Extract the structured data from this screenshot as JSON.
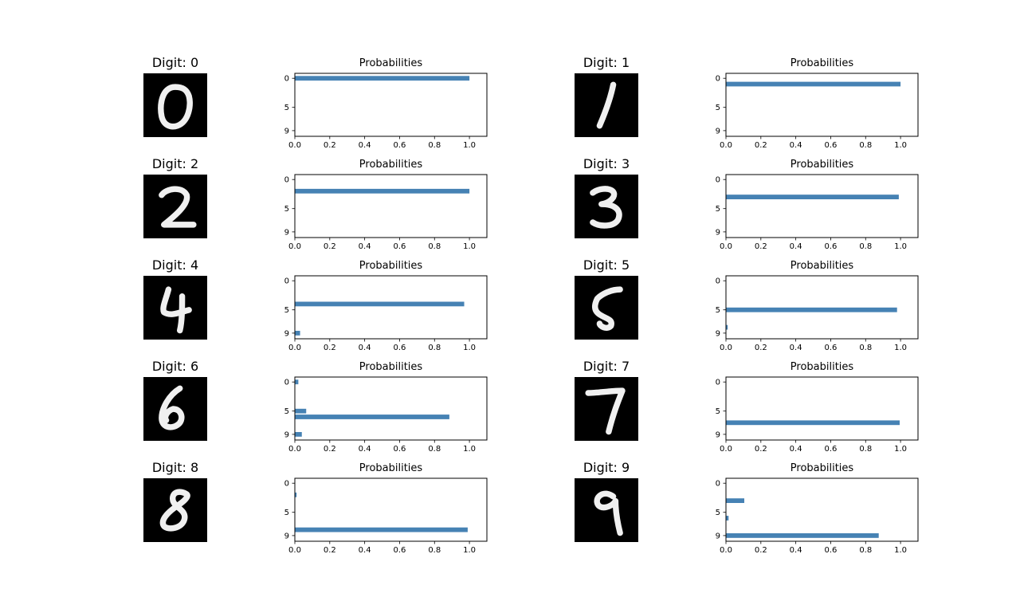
{
  "figure": {
    "panel_count": 10
  },
  "colors": {
    "bar": "#4682b4",
    "digit_bg": "#000000",
    "digit_stroke": "#f0f0f0",
    "axis": "#000000"
  },
  "chart_data": [
    {
      "type": "bar",
      "orientation": "horizontal",
      "image_title": "Digit: 0",
      "title": "Probabilities",
      "categories": [
        "0",
        "1",
        "2",
        "3",
        "4",
        "5",
        "6",
        "7",
        "8",
        "9"
      ],
      "values": [
        1.0,
        0,
        0,
        0,
        0,
        0,
        0,
        0,
        0,
        0
      ],
      "xlim": [
        0,
        1.1
      ],
      "xticks": [
        "0.0",
        "0.2",
        "0.4",
        "0.6",
        "0.8",
        "1.0"
      ],
      "yticks": [
        "0",
        "5",
        "9"
      ]
    },
    {
      "type": "bar",
      "orientation": "horizontal",
      "image_title": "Digit: 1",
      "title": "Probabilities",
      "categories": [
        "0",
        "1",
        "2",
        "3",
        "4",
        "5",
        "6",
        "7",
        "8",
        "9"
      ],
      "values": [
        0,
        1.0,
        0,
        0,
        0,
        0,
        0,
        0,
        0,
        0
      ],
      "xlim": [
        0,
        1.1
      ],
      "xticks": [
        "0.0",
        "0.2",
        "0.4",
        "0.6",
        "0.8",
        "1.0"
      ],
      "yticks": [
        "0",
        "5",
        "9"
      ]
    },
    {
      "type": "bar",
      "orientation": "horizontal",
      "image_title": "Digit: 2",
      "title": "Probabilities",
      "categories": [
        "0",
        "1",
        "2",
        "3",
        "4",
        "5",
        "6",
        "7",
        "8",
        "9"
      ],
      "values": [
        0,
        0,
        1.0,
        0,
        0,
        0,
        0,
        0,
        0,
        0
      ],
      "xlim": [
        0,
        1.1
      ],
      "xticks": [
        "0.0",
        "0.2",
        "0.4",
        "0.6",
        "0.8",
        "1.0"
      ],
      "yticks": [
        "0",
        "5",
        "9"
      ]
    },
    {
      "type": "bar",
      "orientation": "horizontal",
      "image_title": "Digit: 3",
      "title": "Probabilities",
      "categories": [
        "0",
        "1",
        "2",
        "3",
        "4",
        "5",
        "6",
        "7",
        "8",
        "9"
      ],
      "values": [
        0,
        0,
        0,
        0.99,
        0,
        0,
        0,
        0,
        0,
        0
      ],
      "xlim": [
        0,
        1.1
      ],
      "xticks": [
        "0.0",
        "0.2",
        "0.4",
        "0.6",
        "0.8",
        "1.0"
      ],
      "yticks": [
        "0",
        "5",
        "9"
      ]
    },
    {
      "type": "bar",
      "orientation": "horizontal",
      "image_title": "Digit: 4",
      "title": "Probabilities",
      "categories": [
        "0",
        "1",
        "2",
        "3",
        "4",
        "5",
        "6",
        "7",
        "8",
        "9"
      ],
      "values": [
        0,
        0,
        0,
        0,
        0.97,
        0,
        0,
        0,
        0,
        0.03
      ],
      "xlim": [
        0,
        1.1
      ],
      "xticks": [
        "0.0",
        "0.2",
        "0.4",
        "0.6",
        "0.8",
        "1.0"
      ],
      "yticks": [
        "0",
        "5",
        "9"
      ]
    },
    {
      "type": "bar",
      "orientation": "horizontal",
      "image_title": "Digit: 5",
      "title": "Probabilities",
      "categories": [
        "0",
        "1",
        "2",
        "3",
        "4",
        "5",
        "6",
        "7",
        "8",
        "9"
      ],
      "values": [
        0,
        0,
        0,
        0,
        0,
        0.98,
        0,
        0,
        0.01,
        0
      ],
      "xlim": [
        0,
        1.1
      ],
      "xticks": [
        "0.0",
        "0.2",
        "0.4",
        "0.6",
        "0.8",
        "1.0"
      ],
      "yticks": [
        "0",
        "5",
        "9"
      ]
    },
    {
      "type": "bar",
      "orientation": "horizontal",
      "image_title": "Digit: 6",
      "title": "Probabilities",
      "categories": [
        "0",
        "1",
        "2",
        "3",
        "4",
        "5",
        "6",
        "7",
        "8",
        "9"
      ],
      "values": [
        0.02,
        0,
        0,
        0,
        0,
        0.065,
        0.885,
        0,
        0,
        0.04
      ],
      "xlim": [
        0,
        1.1
      ],
      "xticks": [
        "0.0",
        "0.2",
        "0.4",
        "0.6",
        "0.8",
        "1.0"
      ],
      "yticks": [
        "0",
        "5",
        "9"
      ]
    },
    {
      "type": "bar",
      "orientation": "horizontal",
      "image_title": "Digit: 7",
      "title": "Probabilities",
      "categories": [
        "0",
        "1",
        "2",
        "3",
        "4",
        "5",
        "6",
        "7",
        "8",
        "9"
      ],
      "values": [
        0,
        0,
        0,
        0,
        0,
        0,
        0,
        0.995,
        0,
        0
      ],
      "xlim": [
        0,
        1.1
      ],
      "xticks": [
        "0.0",
        "0.2",
        "0.4",
        "0.6",
        "0.8",
        "1.0"
      ],
      "yticks": [
        "0",
        "5",
        "9"
      ]
    },
    {
      "type": "bar",
      "orientation": "horizontal",
      "image_title": "Digit: 8",
      "title": "Probabilities",
      "categories": [
        "0",
        "1",
        "2",
        "3",
        "4",
        "5",
        "6",
        "7",
        "8",
        "9"
      ],
      "values": [
        0,
        0,
        0.01,
        0,
        0,
        0,
        0,
        0,
        0.99,
        0
      ],
      "xlim": [
        0,
        1.1
      ],
      "xticks": [
        "0.0",
        "0.2",
        "0.4",
        "0.6",
        "0.8",
        "1.0"
      ],
      "yticks": [
        "0",
        "5",
        "9"
      ]
    },
    {
      "type": "bar",
      "orientation": "horizontal",
      "image_title": "Digit: 9",
      "title": "Probabilities",
      "categories": [
        "0",
        "1",
        "2",
        "3",
        "4",
        "5",
        "6",
        "7",
        "8",
        "9"
      ],
      "values": [
        0,
        0,
        0,
        0.105,
        0,
        0,
        0.015,
        0,
        0,
        0.875
      ],
      "xlim": [
        0,
        1.1
      ],
      "xticks": [
        "0.0",
        "0.2",
        "0.4",
        "0.6",
        "0.8",
        "1.0"
      ],
      "yticks": [
        "0",
        "5",
        "9"
      ]
    }
  ]
}
